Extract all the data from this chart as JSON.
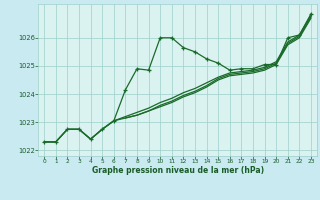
{
  "title": "Graphe pression niveau de la mer (hPa)",
  "bg_color": "#c8eaf0",
  "plot_bg_color": "#daf2f0",
  "line_color": "#1a6b2a",
  "grid_color": "#9dcfca",
  "text_color": "#1a5c28",
  "xlim": [
    -0.5,
    23.5
  ],
  "ylim": [
    1021.8,
    1027.2
  ],
  "yticks": [
    1022,
    1023,
    1024,
    1025,
    1026
  ],
  "xticks": [
    0,
    1,
    2,
    3,
    4,
    5,
    6,
    7,
    8,
    9,
    10,
    11,
    12,
    13,
    14,
    15,
    16,
    17,
    18,
    19,
    20,
    21,
    22,
    23
  ],
  "s1_x": [
    0,
    1,
    2,
    3,
    4,
    5,
    6,
    7,
    8,
    9,
    10,
    11,
    12,
    13,
    14,
    15,
    16,
    17,
    18,
    19,
    20,
    21,
    22,
    23
  ],
  "s1_y": [
    1022.3,
    1022.3,
    1022.75,
    1022.75,
    1022.4,
    1022.75,
    1023.05,
    1024.15,
    1024.9,
    1024.85,
    1026.0,
    1026.0,
    1025.65,
    1025.5,
    1025.25,
    1025.1,
    1024.85,
    1024.9,
    1024.9,
    1025.05,
    1025.05,
    1026.0,
    1026.1,
    1026.85
  ],
  "s2_x": [
    0,
    1,
    2,
    3,
    4,
    5,
    6,
    7,
    8,
    9,
    10,
    11,
    12,
    13,
    14,
    15,
    16,
    17,
    18,
    19,
    20,
    21,
    22,
    23
  ],
  "s2_y": [
    1022.3,
    1022.3,
    1022.75,
    1022.75,
    1022.4,
    1022.75,
    1023.05,
    1023.15,
    1023.25,
    1023.4,
    1023.55,
    1023.7,
    1023.9,
    1024.05,
    1024.25,
    1024.5,
    1024.65,
    1024.7,
    1024.75,
    1024.85,
    1025.05,
    1025.75,
    1026.0,
    1026.7
  ],
  "s3_x": [
    0,
    1,
    2,
    3,
    4,
    5,
    6,
    7,
    8,
    9,
    10,
    11,
    12,
    13,
    14,
    15,
    16,
    17,
    18,
    19,
    20,
    21,
    22,
    23
  ],
  "s3_y": [
    1022.3,
    1022.3,
    1022.75,
    1022.75,
    1022.4,
    1022.75,
    1023.05,
    1023.2,
    1023.35,
    1023.5,
    1023.7,
    1023.85,
    1024.05,
    1024.2,
    1024.4,
    1024.6,
    1024.75,
    1024.8,
    1024.85,
    1024.95,
    1025.15,
    1025.85,
    1026.1,
    1026.8
  ],
  "s4_x": [
    7,
    8,
    9,
    10,
    11,
    12,
    13,
    14,
    15,
    16,
    17,
    18,
    19,
    20,
    21,
    22,
    23
  ],
  "s4_y": [
    1023.15,
    1023.25,
    1023.4,
    1023.6,
    1023.75,
    1023.95,
    1024.1,
    1024.3,
    1024.55,
    1024.7,
    1024.75,
    1024.8,
    1024.9,
    1025.1,
    1025.8,
    1026.05,
    1026.75
  ]
}
